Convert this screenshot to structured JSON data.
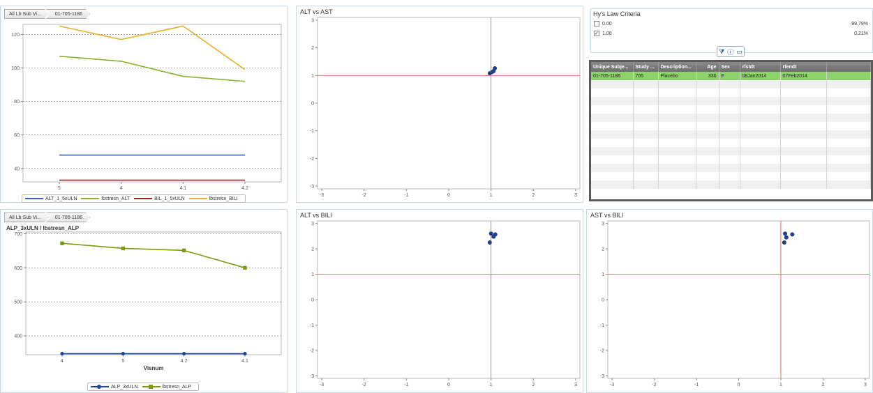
{
  "breadcrumbs": [
    "All Lb Sub Vi...",
    "01-705-1186"
  ],
  "top_left_chart": {
    "legend": [
      {
        "name": "ALT_1_5xULN",
        "color": "#3a62b8"
      },
      {
        "name": "lbstresn_ALT",
        "color": "#8db02a"
      },
      {
        "name": "BIL_1_5xULN",
        "color": "#9a2a22"
      },
      {
        "name": "lbstresn_BILI",
        "color": "#e8b02c"
      }
    ]
  },
  "bottom_left_chart": {
    "legend": [
      {
        "name": "ALP_3xULN",
        "color": "#1f4a9a"
      },
      {
        "name": "lbstresn_ALP",
        "color": "#7a9a10"
      }
    ]
  },
  "criteria": {
    "title": "Hy's Law Criteria",
    "rows": [
      {
        "label": "0.00",
        "checked": false,
        "pct": "99.79%"
      },
      {
        "label": "1.00",
        "checked": true,
        "pct": "0.21%"
      }
    ]
  },
  "toolbar": {
    "filter_icon": "filter-icon",
    "info_icon": "info-icon",
    "maximize_icon": "maximize-icon"
  },
  "table": {
    "columns": [
      "Unique Subje...",
      "Study ...",
      "Description...",
      "Age",
      "Sex",
      "rfstdt",
      "rfendt",
      ""
    ],
    "rows": [
      [
        "01-705-1186",
        "705",
        "Placebo",
        "336",
        "F",
        "08Jan2014",
        "07Feb2014",
        ""
      ]
    ],
    "empty_rows": 13
  },
  "chart_data": [
    {
      "type": "line",
      "title": "",
      "x": [
        "5",
        "4",
        "4.1",
        "4.2"
      ],
      "ylim": [
        32,
        126
      ],
      "yticks": [
        40,
        60,
        80,
        100,
        120
      ],
      "grid": true,
      "legend_position": "bottom",
      "series": [
        {
          "name": "ALT_1_5xULN",
          "color": "#3a62b8",
          "values": [
            48,
            48,
            48,
            48
          ]
        },
        {
          "name": "lbstresn_ALT",
          "color": "#8db02a",
          "values": [
            107,
            104,
            95,
            92
          ]
        },
        {
          "name": "BIL_1_5xULN",
          "color": "#9a2a22",
          "values": [
            33,
            33,
            33,
            33
          ]
        },
        {
          "name": "lbstresn_BILI",
          "color": "#e8b02c",
          "values": [
            125,
            117,
            125,
            99
          ]
        }
      ]
    },
    {
      "type": "line",
      "title": "ALP_3xULN / lbstresn_ALP",
      "xlabel": "Visnum",
      "x": [
        "4",
        "5",
        "4.2",
        "4.1"
      ],
      "ylim": [
        345,
        705
      ],
      "yticks": [
        400,
        500,
        600,
        700
      ],
      "grid": true,
      "legend_position": "bottom",
      "series": [
        {
          "name": "ALP_3xULN",
          "color": "#1f4a9a",
          "marker": "circle",
          "values": [
            348,
            348,
            348,
            348
          ]
        },
        {
          "name": "lbstresn_ALP",
          "color": "#7a9a10",
          "marker": "square",
          "values": [
            672,
            657,
            651,
            600
          ]
        }
      ]
    },
    {
      "type": "scatter",
      "title": "ALT vs AST",
      "xlim": [
        -3.1,
        3.1
      ],
      "ylim": [
        -3.1,
        3.1
      ],
      "xticks": [
        -3,
        -2,
        -1,
        0,
        1,
        2,
        3
      ],
      "yticks": [
        -3,
        -2,
        -1,
        0,
        1,
        2,
        3
      ],
      "reference_lines": {
        "x": 1,
        "y": 1
      },
      "points": [
        [
          0.97,
          1.08
        ],
        [
          1.02,
          1.12
        ],
        [
          1.06,
          1.16
        ],
        [
          1.09,
          1.26
        ]
      ]
    },
    {
      "type": "scatter",
      "title": "ALT vs BILI",
      "xlim": [
        -3.1,
        3.1
      ],
      "ylim": [
        -3.1,
        3.1
      ],
      "xticks": [
        -3,
        -2,
        -1,
        0,
        1,
        2,
        3
      ],
      "yticks": [
        -3,
        -2,
        -1,
        0,
        1,
        2,
        3
      ],
      "reference_lines": {
        "x": 1,
        "y": 1
      },
      "points": [
        [
          0.97,
          2.25
        ],
        [
          1.0,
          2.6
        ],
        [
          1.06,
          2.48
        ],
        [
          1.1,
          2.57
        ]
      ]
    },
    {
      "type": "scatter",
      "title": "AST vs BILI",
      "xlim": [
        -3.1,
        3.1
      ],
      "ylim": [
        -3.1,
        3.1
      ],
      "xticks": [
        -3,
        -2,
        -1,
        0,
        1,
        2,
        3
      ],
      "yticks": [
        -3,
        -2,
        -1,
        0,
        1,
        2,
        3
      ],
      "reference_lines": {
        "x": 1,
        "y": 1
      },
      "points": [
        [
          1.08,
          2.25
        ],
        [
          1.1,
          2.6
        ],
        [
          1.13,
          2.45
        ],
        [
          1.27,
          2.57
        ]
      ]
    }
  ]
}
